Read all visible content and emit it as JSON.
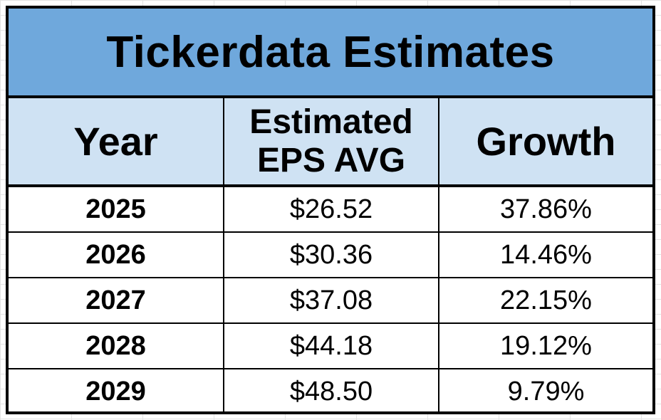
{
  "title": "Tickerdata Estimates",
  "headers": {
    "year": "Year",
    "eps_line1": "Estimated",
    "eps_line2": "EPS AVG",
    "growth": "Growth"
  },
  "rows": [
    {
      "year": "2025",
      "eps": "$26.52",
      "growth": "37.86%"
    },
    {
      "year": "2026",
      "eps": "$30.36",
      "growth": "14.46%"
    },
    {
      "year": "2027",
      "eps": "$37.08",
      "growth": "22.15%"
    },
    {
      "year": "2028",
      "eps": "$44.18",
      "growth": "19.12%"
    },
    {
      "year": "2029",
      "eps": "$48.50",
      "growth": "9.79%"
    }
  ],
  "colors": {
    "banner": "#6fa8dc",
    "header": "#cfe2f3",
    "border": "#000000"
  }
}
